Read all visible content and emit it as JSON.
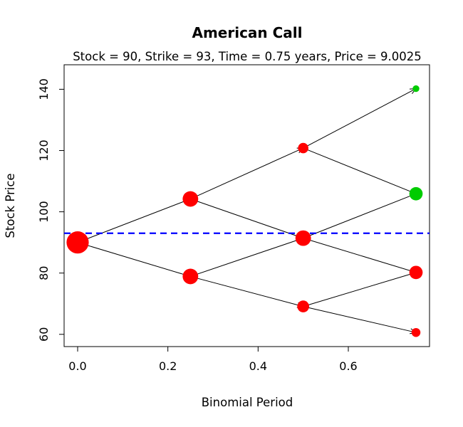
{
  "chart_data": {
    "type": "scatter",
    "title": "American Call",
    "subtitle": "Stock = 90, Strike = 93, Time = 0.75 years, Price = 9.0025",
    "xlabel": "Binomial Period",
    "ylabel": "Stock Price",
    "xlim": [
      -0.03,
      0.78
    ],
    "ylim": [
      56,
      148
    ],
    "x_ticks": [
      0.0,
      0.2,
      0.4,
      0.6
    ],
    "x_tick_labels": [
      "0.0",
      "0.2",
      "0.4",
      "0.6"
    ],
    "y_ticks": [
      60,
      80,
      100,
      120,
      140
    ],
    "y_tick_labels": [
      "60",
      "80",
      "100",
      "120",
      "140"
    ],
    "grid": false,
    "strike_line": {
      "y": 93,
      "color": "#0000ff",
      "style": "dashed"
    },
    "colors": {
      "red": "#ff0000",
      "green": "#00cc00",
      "arrow": "#000000"
    },
    "nodes": [
      {
        "x": 0.0,
        "y": 90.0,
        "color": "red",
        "size": 3.0
      },
      {
        "x": 0.25,
        "y": 104.2,
        "color": "red",
        "size": 2.1
      },
      {
        "x": 0.25,
        "y": 78.9,
        "color": "red",
        "size": 2.1
      },
      {
        "x": 0.5,
        "y": 120.8,
        "color": "red",
        "size": 1.4
      },
      {
        "x": 0.5,
        "y": 91.4,
        "color": "red",
        "size": 2.1
      },
      {
        "x": 0.5,
        "y": 69.1,
        "color": "red",
        "size": 1.6
      },
      {
        "x": 0.75,
        "y": 140.2,
        "color": "green",
        "size": 0.9
      },
      {
        "x": 0.75,
        "y": 105.9,
        "color": "green",
        "size": 1.8
      },
      {
        "x": 0.75,
        "y": 80.2,
        "color": "red",
        "size": 1.8
      },
      {
        "x": 0.75,
        "y": 60.6,
        "color": "red",
        "size": 1.2
      }
    ],
    "edges": [
      [
        0,
        1
      ],
      [
        0,
        2
      ],
      [
        1,
        3
      ],
      [
        1,
        4
      ],
      [
        2,
        4
      ],
      [
        2,
        5
      ],
      [
        3,
        6
      ],
      [
        3,
        7
      ],
      [
        4,
        7
      ],
      [
        4,
        8
      ],
      [
        5,
        8
      ],
      [
        5,
        9
      ]
    ]
  }
}
